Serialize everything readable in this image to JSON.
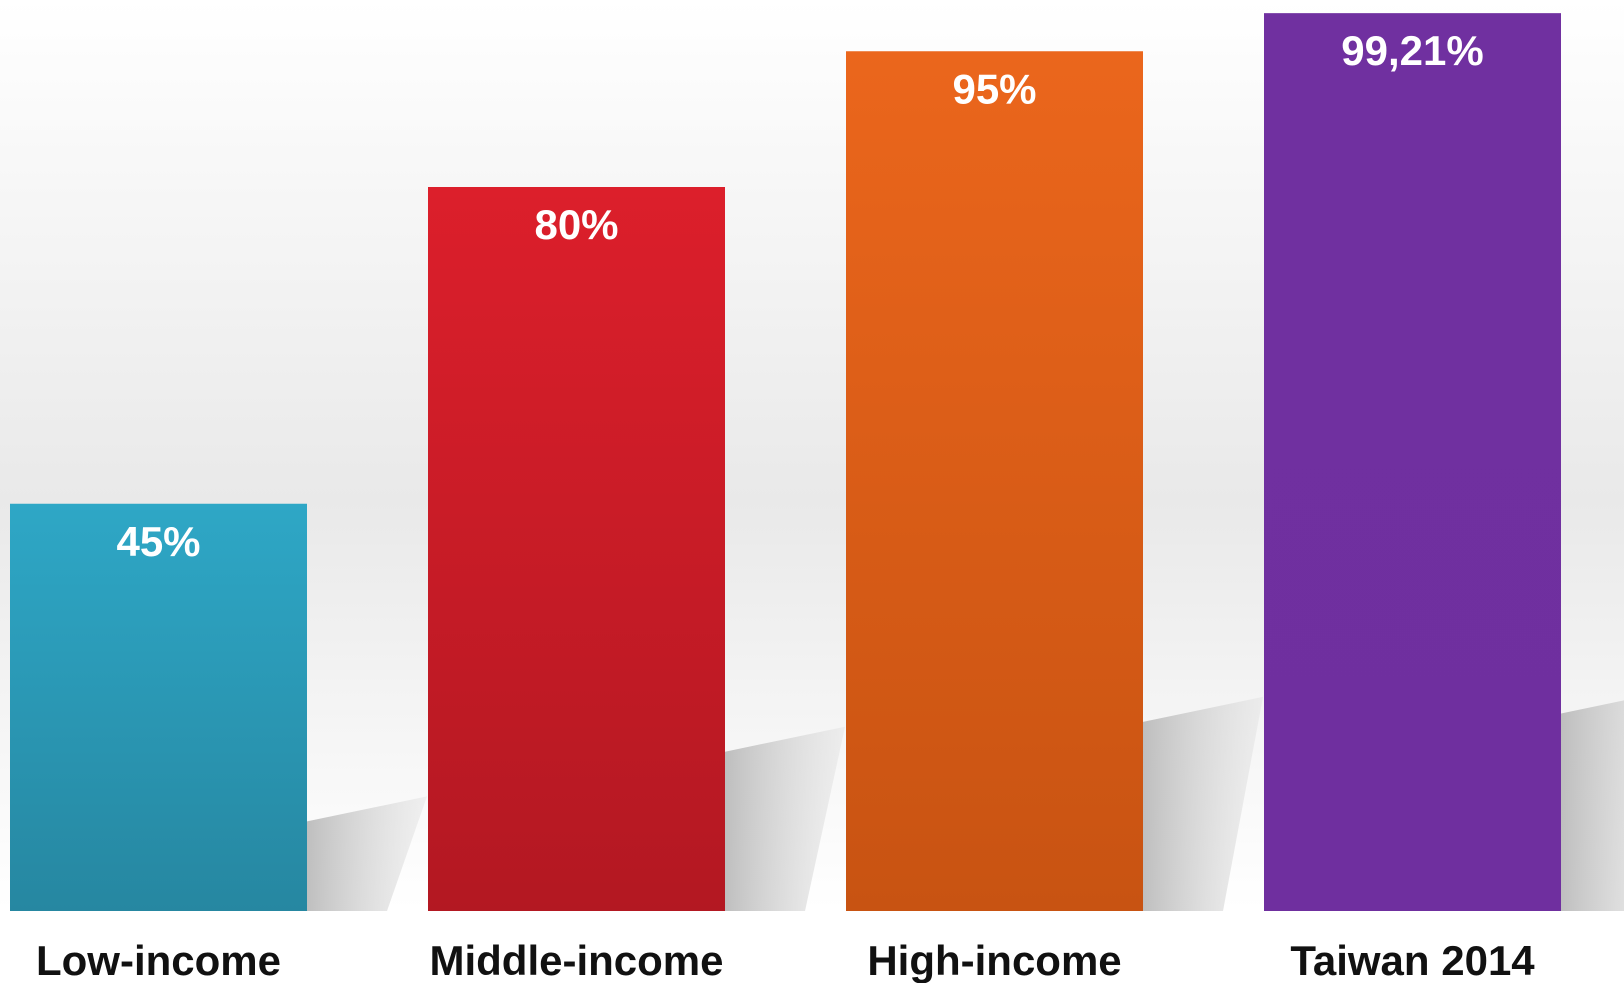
{
  "chart_data": {
    "type": "bar",
    "categories": [
      "Low-income",
      "Middle-income",
      "High-income",
      "Taiwan 2014"
    ],
    "values": [
      45,
      80,
      95,
      99.21
    ],
    "data_labels": [
      "45%",
      "80%",
      "95%",
      "99,21%"
    ],
    "colors": [
      "#2a97b4",
      "#d41c26",
      "#e4601a",
      "#7030a0"
    ],
    "ylim": [
      0,
      100
    ],
    "grid": false,
    "legend": "none"
  }
}
